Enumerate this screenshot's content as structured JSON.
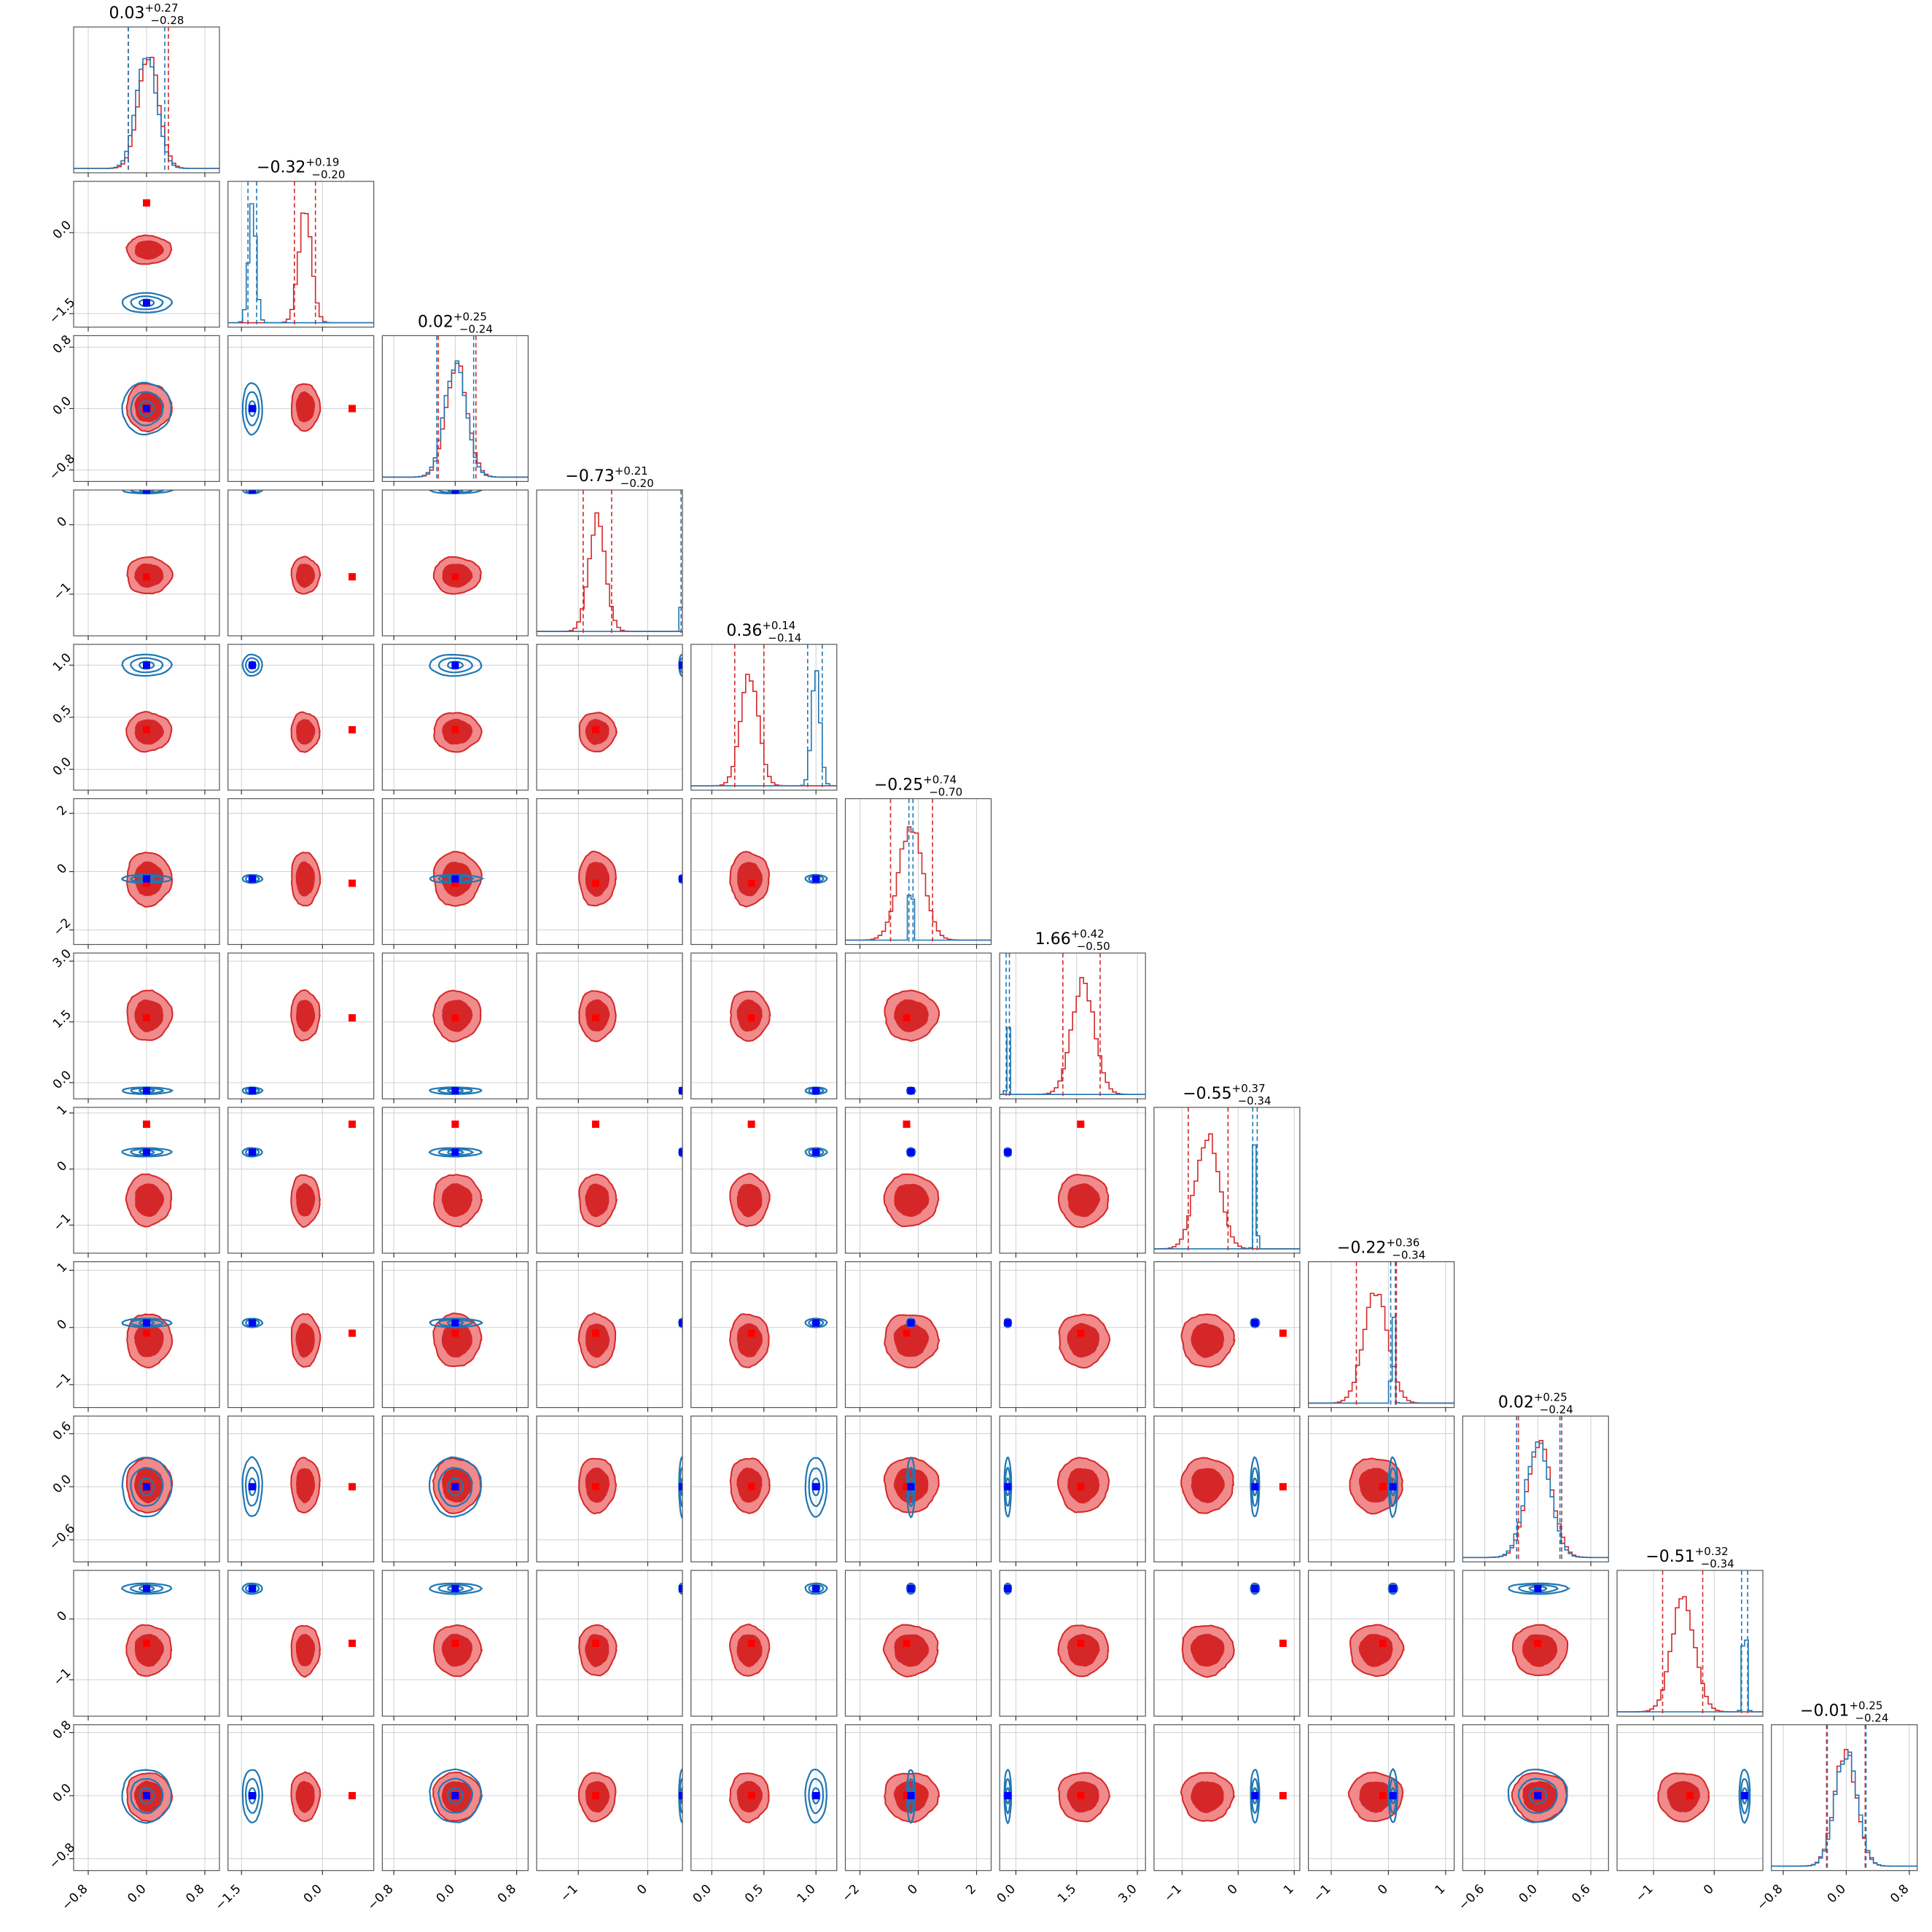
{
  "chart_data": {
    "type": "corner",
    "n_params": 12,
    "colors": {
      "primary": "#d62728",
      "primary_light": "#f08a8b",
      "secondary": "#1f77b4",
      "truth_marker": "#ff0000",
      "secondary_marker": "#0000ff",
      "grid": "#d0d0d0"
    },
    "series": [
      {
        "color_key": "primary",
        "style": "filled-contours"
      },
      {
        "color_key": "secondary",
        "style": "line-contours"
      }
    ],
    "titles": [
      {
        "median": "0.03",
        "plus": "+0.27",
        "minus": "−0.28"
      },
      {
        "median": "−0.32",
        "plus": "+0.19",
        "minus": "−0.20"
      },
      {
        "median": "0.02",
        "plus": "+0.25",
        "minus": "−0.24"
      },
      {
        "median": "−0.73",
        "plus": "+0.21",
        "minus": "−0.20"
      },
      {
        "median": "0.36",
        "plus": "+0.14",
        "minus": "−0.14"
      },
      {
        "median": "−0.25",
        "plus": "+0.74",
        "minus": "−0.70"
      },
      {
        "median": "1.66",
        "plus": "+0.42",
        "minus": "−0.50"
      },
      {
        "median": "−0.55",
        "plus": "+0.37",
        "minus": "−0.34"
      },
      {
        "median": "−0.22",
        "plus": "+0.36",
        "minus": "−0.34"
      },
      {
        "median": "0.02",
        "plus": "+0.25",
        "minus": "−0.24"
      },
      {
        "median": "−0.51",
        "plus": "+0.32",
        "minus": "−0.34"
      },
      {
        "median": "−0.01",
        "plus": "+0.25",
        "minus": "−0.24"
      }
    ],
    "params": [
      {
        "range": [
          -1.0,
          1.0
        ],
        "ticks": [
          -0.8,
          0.0,
          0.8
        ],
        "tick_labels": [
          "−0.8",
          "0.0",
          "0.8"
        ],
        "p_mean": 0.03,
        "p_sd": 0.14,
        "p_q": [
          -0.25,
          0.03,
          0.3
        ],
        "s_mean": 0.0,
        "s_sd": 0.14,
        "s_q": [
          -0.25,
          0.0,
          0.25
        ],
        "truth": 0.0,
        "s_truth": 0.0
      },
      {
        "range": [
          -1.75,
          0.95
        ],
        "ticks": [
          -1.5,
          0.0
        ],
        "tick_labels": [
          "−1.5",
          "0.0"
        ],
        "p_mean": -0.32,
        "p_sd": 0.12,
        "p_q": [
          -0.52,
          -0.32,
          -0.13
        ],
        "s_mean": -1.3,
        "s_sd": 0.07,
        "s_q": [
          -1.38,
          -1.3,
          -1.22
        ],
        "truth": 0.55,
        "s_truth": -1.3
      },
      {
        "range": [
          -0.95,
          0.95
        ],
        "ticks": [
          -0.8,
          0.0,
          0.8
        ],
        "tick_labels": [
          "−0.8",
          "0.0",
          "0.8"
        ],
        "p_mean": 0.02,
        "p_sd": 0.14,
        "p_q": [
          -0.22,
          0.02,
          0.27
        ],
        "s_mean": 0.0,
        "s_sd": 0.14,
        "s_q": [
          -0.24,
          0.0,
          0.24
        ],
        "truth": 0.0,
        "s_truth": 0.0
      },
      {
        "range": [
          -1.6,
          0.5
        ],
        "ticks": [
          -1.0,
          0.0
        ],
        "tick_labels": [
          "−1",
          "0"
        ],
        "p_mean": -0.73,
        "p_sd": 0.12,
        "p_q": [
          -0.93,
          -0.73,
          -0.52
        ],
        "s_mean": 0.5,
        "s_sd": 0.015,
        "s_q": [
          0.48,
          0.5,
          0.52
        ],
        "truth": -0.75,
        "s_truth": 0.5
      },
      {
        "range": [
          -0.2,
          1.2
        ],
        "ticks": [
          0.0,
          0.5,
          1.0
        ],
        "tick_labels": [
          "0.0",
          "0.5",
          "1.0"
        ],
        "p_mean": 0.36,
        "p_sd": 0.085,
        "p_q": [
          0.22,
          0.36,
          0.5
        ],
        "s_mean": 1.0,
        "s_sd": 0.04,
        "s_q": [
          0.92,
          1.0,
          1.06
        ],
        "truth": 0.38,
        "s_truth": 1.0
      },
      {
        "range": [
          -2.5,
          2.5
        ],
        "ticks": [
          -2.0,
          0.0,
          2.0
        ],
        "tick_labels": [
          "−2",
          "0",
          "2"
        ],
        "p_mean": -0.25,
        "p_sd": 0.42,
        "p_q": [
          -0.95,
          -0.25,
          0.49
        ],
        "s_mean": -0.25,
        "s_sd": 0.045,
        "s_q": [
          -0.32,
          -0.25,
          -0.18
        ],
        "truth": -0.4,
        "s_truth": -0.25
      },
      {
        "range": [
          -0.4,
          3.2
        ],
        "ticks": [
          0.0,
          1.5,
          3.0
        ],
        "tick_labels": [
          "0.0",
          "1.5",
          "3.0"
        ],
        "p_mean": 1.66,
        "p_sd": 0.28,
        "p_q": [
          1.16,
          1.66,
          2.08
        ],
        "s_mean": -0.2,
        "s_sd": 0.025,
        "s_q": [
          -0.24,
          -0.2,
          -0.16
        ],
        "truth": 1.6,
        "s_truth": -0.2
      },
      {
        "range": [
          -1.5,
          1.1
        ],
        "ticks": [
          -1.0,
          0.0,
          1.0
        ],
        "tick_labels": [
          "−1",
          "0",
          "1"
        ],
        "p_mean": -0.55,
        "p_sd": 0.21,
        "p_q": [
          -0.89,
          -0.55,
          -0.18
        ],
        "s_mean": 0.3,
        "s_sd": 0.025,
        "s_q": [
          0.26,
          0.3,
          0.34
        ],
        "truth": 0.8,
        "s_truth": 0.3
      },
      {
        "range": [
          -1.4,
          1.15
        ],
        "ticks": [
          -1.0,
          0.0,
          1.0
        ],
        "tick_labels": [
          "−1",
          "0",
          "1"
        ],
        "p_mean": -0.22,
        "p_sd": 0.21,
        "p_q": [
          -0.56,
          -0.22,
          0.14
        ],
        "s_mean": 0.08,
        "s_sd": 0.025,
        "s_q": [
          0.04,
          0.08,
          0.12
        ],
        "truth": -0.1,
        "s_truth": 0.08
      },
      {
        "range": [
          -0.85,
          0.8
        ],
        "ticks": [
          -0.6,
          0.0,
          0.6
        ],
        "tick_labels": [
          "−0.6",
          "0.0",
          "0.6"
        ],
        "p_mean": 0.02,
        "p_sd": 0.14,
        "p_q": [
          -0.22,
          0.02,
          0.27
        ],
        "s_mean": 0.0,
        "s_sd": 0.14,
        "s_q": [
          -0.24,
          0.0,
          0.25
        ],
        "truth": 0.0,
        "s_truth": 0.0
      },
      {
        "range": [
          -1.6,
          0.8
        ],
        "ticks": [
          -1.0,
          0.0
        ],
        "tick_labels": [
          "−1",
          "0"
        ],
        "p_mean": -0.51,
        "p_sd": 0.19,
        "p_q": [
          -0.85,
          -0.51,
          -0.19
        ],
        "s_mean": 0.5,
        "s_sd": 0.03,
        "s_q": [
          0.45,
          0.5,
          0.55
        ],
        "truth": -0.4,
        "s_truth": 0.5
      },
      {
        "range": [
          -0.95,
          0.9
        ],
        "ticks": [
          -0.8,
          0.0,
          0.8
        ],
        "tick_labels": [
          "−0.8",
          "0.0",
          "0.8"
        ],
        "p_mean": -0.01,
        "p_sd": 0.14,
        "p_q": [
          -0.25,
          -0.01,
          0.24
        ],
        "s_mean": 0.0,
        "s_sd": 0.14,
        "s_q": [
          -0.24,
          0.0,
          0.25
        ],
        "truth": 0.0,
        "s_truth": 0.0
      }
    ]
  }
}
